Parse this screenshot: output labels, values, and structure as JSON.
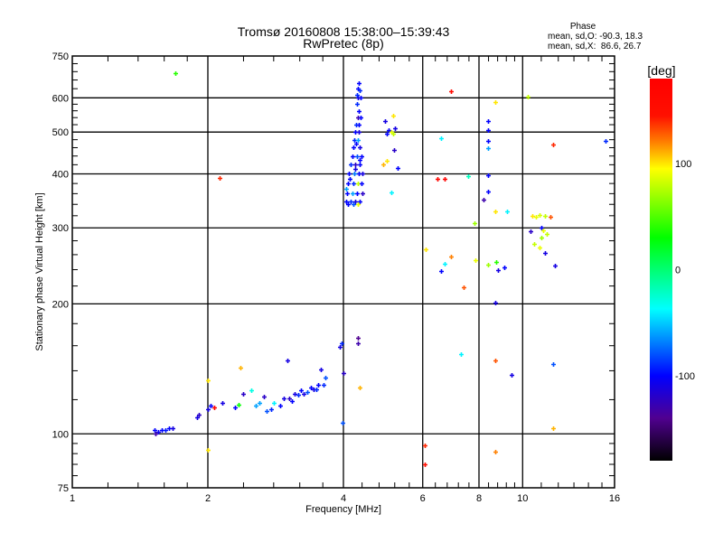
{
  "chart_data": {
    "type": "scatter",
    "title": "Tromsø 20160808 15:38:00–15:39:43",
    "subtitle": "RwPretec (8p)",
    "xlabel": "Frequency [MHz]",
    "ylabel": "Stationary phase Virtual Height [km]",
    "xscale": "log",
    "yscale": "log",
    "xlim": [
      1,
      16
    ],
    "ylim": [
      75,
      750
    ],
    "grid": true,
    "xticks": [
      1,
      2,
      4,
      6,
      8,
      10,
      16
    ],
    "xtick_labels": [
      "1",
      "2",
      "4",
      "6",
      "8",
      "10",
      "16"
    ],
    "xgrid": [
      2,
      4,
      6,
      8,
      10
    ],
    "xminor": [
      1.2,
      1.4,
      1.6,
      1.8,
      2.4,
      2.8,
      3.2,
      3.6,
      4.4,
      4.8,
      5.2,
      5.6,
      6.4,
      6.8,
      7.2,
      7.6,
      8.4,
      8.8,
      9.2,
      9.6,
      11,
      12,
      13,
      14,
      15
    ],
    "yticks": [
      75,
      100,
      200,
      300,
      400,
      500,
      600,
      750
    ],
    "ytick_labels": [
      "75",
      "100",
      "200",
      "300",
      "400",
      "500",
      "600",
      "750"
    ],
    "ygrid": [
      100,
      200,
      300,
      400,
      500,
      600
    ],
    "yminor": [
      80,
      85,
      90,
      95,
      120,
      140,
      160,
      180,
      220,
      240,
      260,
      280,
      320,
      340,
      360,
      380,
      420,
      440,
      460,
      480,
      520,
      540,
      560,
      580,
      630,
      660,
      690,
      720
    ],
    "legend": {
      "heading": "Phase",
      "line_o": "mean, sd,O: -90.3, 18.3",
      "line_x": "mean, sd,X:  86.6, 26.7"
    },
    "colorbar": {
      "label": "[deg]",
      "range": [
        -180,
        180
      ],
      "ticks": [
        100,
        0,
        -100
      ],
      "tick_labels": [
        "100",
        "0",
        "-100"
      ],
      "stops": [
        {
          "value": 180,
          "color": "#ff0000"
        },
        {
          "value": 145,
          "color": "#ff1000"
        },
        {
          "value": 120,
          "color": "#ff8000"
        },
        {
          "value": 95,
          "color": "#ffff00"
        },
        {
          "value": 30,
          "color": "#00ff00"
        },
        {
          "value": -37,
          "color": "#00ffff"
        },
        {
          "value": -100,
          "color": "#0000ff"
        },
        {
          "value": -140,
          "color": "#500090"
        },
        {
          "value": -180,
          "color": "#000000"
        }
      ]
    },
    "point_fields": [
      "frequency_MHz",
      "height_km",
      "phase_deg"
    ],
    "points": [
      [
        1.52,
        102,
        -100
      ],
      [
        1.55,
        101,
        -105
      ],
      [
        1.58,
        102,
        -100
      ],
      [
        1.61,
        102,
        -95
      ],
      [
        1.64,
        103,
        -100
      ],
      [
        1.67,
        103,
        -110
      ],
      [
        1.53,
        100,
        -130
      ],
      [
        1.69,
        686,
        40
      ],
      [
        1.89,
        109,
        -110
      ],
      [
        1.91,
        111,
        -120
      ],
      [
        2.0,
        114,
        -110
      ],
      [
        2.03,
        116,
        -100
      ],
      [
        2.07,
        115,
        170
      ],
      [
        2.0,
        133,
        100
      ],
      [
        2.0,
        92,
        100
      ],
      [
        2.12,
        392,
        140
      ],
      [
        2.15,
        118,
        -110
      ],
      [
        2.36,
        142,
        110
      ],
      [
        2.3,
        115,
        -100
      ],
      [
        2.34,
        117,
        30
      ],
      [
        2.4,
        124,
        -120
      ],
      [
        2.5,
        126,
        -30
      ],
      [
        2.55,
        116,
        -60
      ],
      [
        2.6,
        118,
        -60
      ],
      [
        2.66,
        122,
        -120
      ],
      [
        2.7,
        113,
        -80
      ],
      [
        2.76,
        114,
        -90
      ],
      [
        2.8,
        118,
        -40
      ],
      [
        2.89,
        116,
        -100
      ],
      [
        2.95,
        121,
        -110
      ],
      [
        3.0,
        148,
        -110
      ],
      [
        3.03,
        121,
        -120
      ],
      [
        3.08,
        119,
        -100
      ],
      [
        3.12,
        124,
        -110
      ],
      [
        3.17,
        123,
        -90
      ],
      [
        3.22,
        126,
        -100
      ],
      [
        3.27,
        124,
        -110
      ],
      [
        3.32,
        125,
        -80
      ],
      [
        3.38,
        128,
        -100
      ],
      [
        3.43,
        127,
        -110
      ],
      [
        3.48,
        127,
        -90
      ],
      [
        3.52,
        130,
        -100
      ],
      [
        3.56,
        141,
        -110
      ],
      [
        3.61,
        130,
        -90
      ],
      [
        3.65,
        135,
        -80
      ],
      [
        3.92,
        159,
        -110
      ],
      [
        3.96,
        162,
        -90
      ],
      [
        4.0,
        138,
        -120
      ],
      [
        3.98,
        106,
        -80
      ],
      [
        4.35,
        128,
        110
      ],
      [
        4.31,
        167,
        -140
      ],
      [
        4.31,
        162,
        -130
      ],
      [
        4.32,
        650,
        -100
      ],
      [
        4.3,
        630,
        -100
      ],
      [
        4.35,
        625,
        -90
      ],
      [
        4.3,
        600,
        -110
      ],
      [
        4.36,
        600,
        -100
      ],
      [
        4.28,
        580,
        -90
      ],
      [
        4.33,
        560,
        -100
      ],
      [
        4.3,
        540,
        -130
      ],
      [
        4.37,
        540,
        -100
      ],
      [
        4.27,
        520,
        -90
      ],
      [
        4.25,
        500,
        -100
      ],
      [
        4.33,
        500,
        -110
      ],
      [
        4.22,
        480,
        -90
      ],
      [
        4.3,
        480,
        -60
      ],
      [
        4.2,
        460,
        -100
      ],
      [
        4.35,
        460,
        -110
      ],
      [
        4.18,
        440,
        -100
      ],
      [
        4.28,
        440,
        -80
      ],
      [
        4.38,
        440,
        -100
      ],
      [
        4.15,
        420,
        -90
      ],
      [
        4.25,
        420,
        -120
      ],
      [
        4.35,
        420,
        -100
      ],
      [
        4.12,
        400,
        -100
      ],
      [
        4.22,
        400,
        -70
      ],
      [
        4.32,
        400,
        -100
      ],
      [
        4.4,
        400,
        -110
      ],
      [
        4.1,
        380,
        -100
      ],
      [
        4.2,
        380,
        -90
      ],
      [
        4.3,
        380,
        80
      ],
      [
        4.38,
        380,
        -100
      ],
      [
        4.08,
        360,
        -100
      ],
      [
        4.18,
        360,
        -60
      ],
      [
        4.28,
        360,
        -100
      ],
      [
        4.4,
        360,
        -120
      ],
      [
        4.06,
        345,
        -100
      ],
      [
        4.15,
        345,
        -90
      ],
      [
        4.25,
        345,
        -110
      ],
      [
        4.35,
        345,
        -100
      ],
      [
        4.1,
        340,
        -100
      ],
      [
        4.2,
        340,
        -80
      ],
      [
        4.3,
        340,
        90
      ],
      [
        4.05,
        370,
        -60
      ],
      [
        4.14,
        390,
        -100
      ],
      [
        4.24,
        410,
        -110
      ],
      [
        4.34,
        430,
        -100
      ],
      [
        4.26,
        470,
        -100
      ],
      [
        4.32,
        520,
        -100
      ],
      [
        4.29,
        610,
        -90
      ],
      [
        4.95,
        530,
        -110
      ],
      [
        5.05,
        505,
        -100
      ],
      [
        5.1,
        500,
        90
      ],
      [
        5.15,
        495,
        80
      ],
      [
        5.2,
        510,
        -110
      ],
      [
        5.15,
        545,
        100
      ],
      [
        5.0,
        495,
        -100
      ],
      [
        5.18,
        455,
        -120
      ],
      [
        4.9,
        420,
        110
      ],
      [
        4.99,
        428,
        100
      ],
      [
        5.1,
        363,
        -40
      ],
      [
        5.28,
        412,
        -100
      ],
      [
        6.93,
        623,
        160
      ],
      [
        8.69,
        588,
        100
      ],
      [
        10.27,
        605,
        80
      ],
      [
        8.38,
        529,
        -100
      ],
      [
        8.38,
        506,
        -100
      ],
      [
        8.38,
        478,
        -100
      ],
      [
        8.38,
        458,
        -60
      ],
      [
        6.59,
        483,
        -40
      ],
      [
        11.69,
        467,
        140
      ],
      [
        15.28,
        478,
        -90
      ],
      [
        6.47,
        389,
        170
      ],
      [
        6.7,
        389,
        175
      ],
      [
        7.57,
        396,
        -20
      ],
      [
        8.38,
        398,
        -100
      ],
      [
        8.38,
        365,
        -100
      ],
      [
        8.2,
        348,
        -130
      ],
      [
        8.69,
        327,
        100
      ],
      [
        9.23,
        327,
        -40
      ],
      [
        7.8,
        307,
        70
      ],
      [
        6.09,
        267,
        100
      ],
      [
        6.93,
        257,
        120
      ],
      [
        6.7,
        248,
        -40
      ],
      [
        6.59,
        238,
        -100
      ],
      [
        7.87,
        252,
        90
      ],
      [
        8.38,
        247,
        70
      ],
      [
        8.72,
        250,
        40
      ],
      [
        8.8,
        240,
        -110
      ],
      [
        9.1,
        243,
        -100
      ],
      [
        7.39,
        219,
        130
      ],
      [
        8.69,
        201,
        -110
      ],
      [
        7.3,
        153,
        -40
      ],
      [
        8.69,
        148,
        130
      ],
      [
        9.44,
        137,
        -110
      ],
      [
        11.69,
        145,
        -80
      ],
      [
        11.69,
        103,
        110
      ],
      [
        6.07,
        94,
        140
      ],
      [
        6.07,
        85,
        150
      ],
      [
        8.69,
        91,
        120
      ],
      [
        10.5,
        320,
        100
      ],
      [
        10.7,
        318,
        90
      ],
      [
        10.9,
        322,
        85
      ],
      [
        11.2,
        320,
        80
      ],
      [
        11.5,
        318,
        130
      ],
      [
        10.4,
        295,
        -120
      ],
      [
        11.0,
        300,
        -100
      ],
      [
        11.1,
        296,
        90
      ],
      [
        11.3,
        290,
        80
      ],
      [
        11.0,
        285,
        70
      ],
      [
        10.9,
        270,
        90
      ],
      [
        11.2,
        262,
        -110
      ],
      [
        11.8,
        245,
        -110
      ],
      [
        10.6,
        275,
        80
      ]
    ]
  }
}
